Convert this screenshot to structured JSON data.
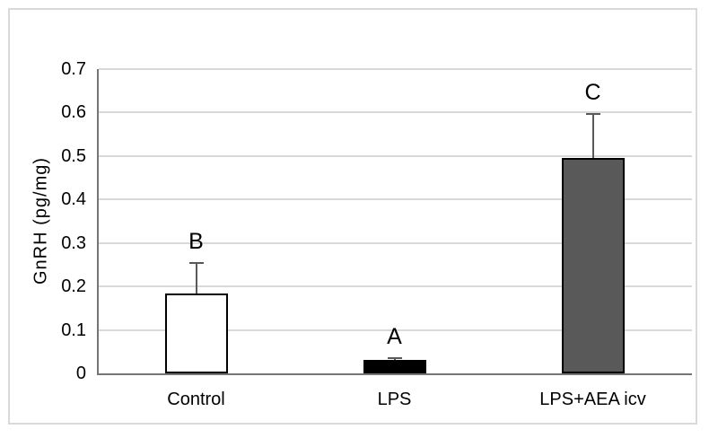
{
  "figure": {
    "background": "#ffffff",
    "border_color": "#d9d9d9"
  },
  "chart_data": {
    "type": "bar",
    "title": "",
    "xlabel": "",
    "ylabel": "GnRH (pg/mg)",
    "ylim": [
      0,
      0.7
    ],
    "ytick_step": 0.1,
    "yticks": [
      "0",
      "0.1",
      "0.2",
      "0.3",
      "0.4",
      "0.5",
      "0.6",
      "0.7"
    ],
    "grid": true,
    "legend": "none",
    "categories": [
      "Control",
      "LPS",
      "LPS+AEA icv"
    ],
    "values": [
      0.183,
      0.03,
      0.495
    ],
    "error_plus": [
      0.072,
      0.006,
      0.102
    ],
    "bar_labels": [
      "B",
      "A",
      "C"
    ],
    "bar_fill_colors": [
      "#ffffff",
      "#000000",
      "#595959"
    ],
    "bar_border_colors": [
      "#000000",
      "#000000",
      "#000000"
    ],
    "error_bar_color": "#595959",
    "gridline_color": "#d9d9d9",
    "axis_line_color": "#757575",
    "text_color": "#000000"
  }
}
